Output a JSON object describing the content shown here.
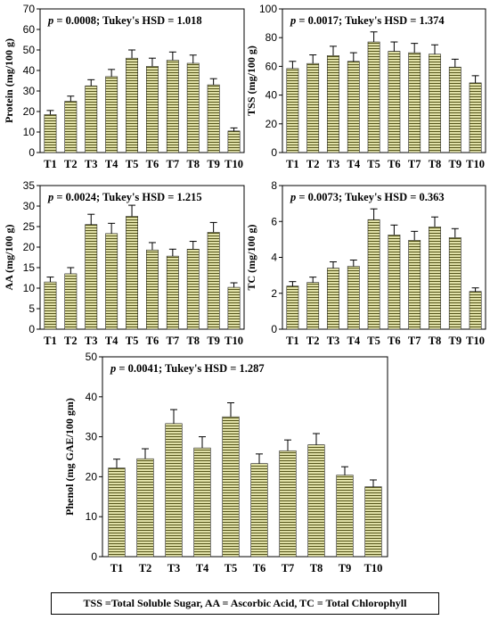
{
  "chart_data": [
    {
      "type": "bar",
      "title": "Protein",
      "stat_text": {
        "p_label": "p",
        "rest": " = 0.0008; Tukey's HSD = 1.018"
      },
      "ylabel": "Protein (mg/100 g)",
      "ylim": [
        0,
        70
      ],
      "yticks": [
        0,
        10,
        20,
        30,
        40,
        50,
        60,
        70
      ],
      "categories": [
        "T1",
        "T2",
        "T3",
        "T4",
        "T5",
        "T6",
        "T7",
        "T8",
        "T9",
        "T10"
      ],
      "values": [
        18.5,
        25,
        32.5,
        37,
        46,
        42,
        45,
        43.5,
        33,
        10.5
      ],
      "errors": [
        2,
        2.5,
        3,
        3.5,
        4,
        4,
        4,
        4,
        3,
        1.5
      ]
    },
    {
      "type": "bar",
      "title": "TSS",
      "stat_text": {
        "p_label": "p",
        "rest": " = 0.0017; Tukey's HSD = 1.374"
      },
      "ylabel": "TSS (mg/100 g)",
      "ylim": [
        0,
        100
      ],
      "yticks": [
        0,
        20,
        40,
        60,
        80,
        100
      ],
      "categories": [
        "T1",
        "T2",
        "T3",
        "T4",
        "T5",
        "T6",
        "T7",
        "T8",
        "T9",
        "T10"
      ],
      "values": [
        58.5,
        62,
        67.5,
        63.5,
        77,
        70.5,
        69.5,
        68.5,
        59.5,
        48.5
      ],
      "errors": [
        5,
        6,
        6.5,
        6,
        7,
        6.5,
        6.5,
        6.5,
        5.5,
        5
      ]
    },
    {
      "type": "bar",
      "title": "AA",
      "stat_text": {
        "p_label": "p",
        "rest": " = 0.0024; Tukey's HSD = 1.215"
      },
      "ylabel": "AA (mg/100 g)",
      "ylim": [
        0,
        35
      ],
      "yticks": [
        0,
        5,
        10,
        15,
        20,
        25,
        30,
        35
      ],
      "categories": [
        "T1",
        "T2",
        "T3",
        "T4",
        "T5",
        "T6",
        "T7",
        "T8",
        "T9",
        "T10"
      ],
      "values": [
        11.5,
        13.5,
        25.5,
        23.3,
        27.5,
        19.3,
        17.8,
        19.5,
        23.6,
        10.2
      ],
      "errors": [
        1.2,
        1.5,
        2.5,
        2.5,
        2.7,
        1.8,
        1.7,
        1.9,
        2.4,
        1.1
      ]
    },
    {
      "type": "bar",
      "title": "TC",
      "stat_text": {
        "p_label": "p",
        "rest": " = 0.0073; Tukey's HSD = 0.363"
      },
      "ylabel": "TC (mg/100 g)",
      "ylim": [
        0,
        8
      ],
      "yticks": [
        0,
        2,
        4,
        6,
        8
      ],
      "categories": [
        "T1",
        "T2",
        "T3",
        "T4",
        "T5",
        "T6",
        "T7",
        "T8",
        "T9",
        "T10"
      ],
      "values": [
        2.4,
        2.6,
        3.4,
        3.5,
        6.1,
        5.25,
        4.95,
        5.7,
        5.1,
        2.1
      ],
      "errors": [
        0.25,
        0.3,
        0.35,
        0.35,
        0.6,
        0.55,
        0.5,
        0.55,
        0.5,
        0.2
      ]
    },
    {
      "type": "bar",
      "title": "Phenol",
      "stat_text": {
        "p_label": "p",
        "rest": " = 0.0041; Tukey's HSD = 1.287"
      },
      "ylabel": "Phenol (mg GAE/100 gm)",
      "ylim": [
        0,
        50
      ],
      "yticks": [
        0,
        10,
        20,
        30,
        40,
        50
      ],
      "categories": [
        "T1",
        "T2",
        "T3",
        "T4",
        "T5",
        "T6",
        "T7",
        "T8",
        "T9",
        "T10"
      ],
      "values": [
        22.2,
        24.5,
        33.3,
        27.2,
        35,
        23.3,
        26.5,
        28,
        20.4,
        17.5
      ],
      "errors": [
        2.2,
        2.5,
        3.5,
        2.8,
        3.5,
        2.4,
        2.7,
        2.8,
        2.1,
        1.7
      ]
    }
  ],
  "caption": "TSS =Total Soluble Sugar, AA = Ascorbic Acid, TC = Total Chlorophyll",
  "colors": {
    "bar_fill": "#e1e1a8",
    "bar_stripe": "#55551a",
    "axis": "#000000",
    "error_bar": "#000000"
  }
}
